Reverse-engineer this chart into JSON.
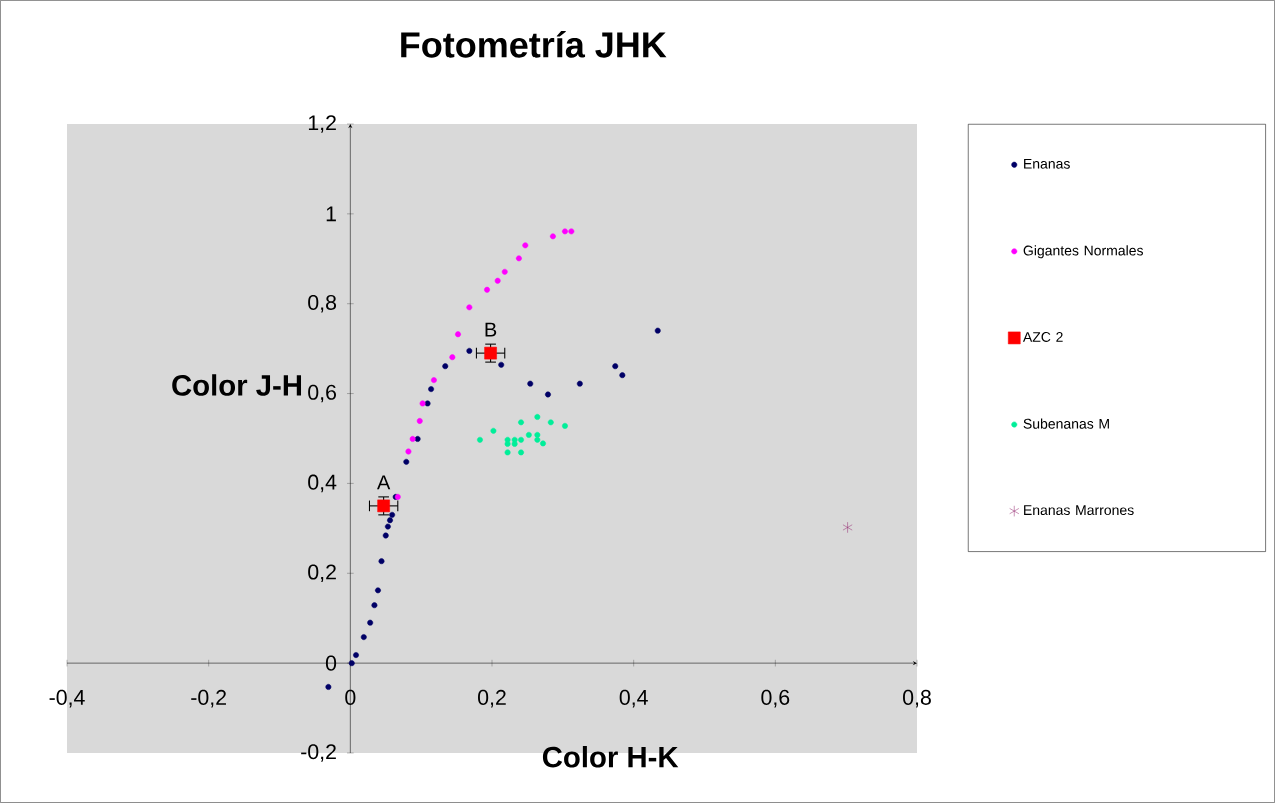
{
  "chart_data": {
    "type": "scatter",
    "title": "Fotometría JHK",
    "xlabel": "Color H-K",
    "ylabel": "Color J-H",
    "xlim": [
      -0.4,
      0.8
    ],
    "ylim": [
      -0.2,
      1.2
    ],
    "xticks": [
      {
        "value": -0.4,
        "label": "-0,4"
      },
      {
        "value": -0.2,
        "label": "-0,2"
      },
      0,
      {
        "value": 0.2,
        "label": "0,2"
      },
      {
        "value": 0.4,
        "label": "0,4"
      },
      {
        "value": 0.6,
        "label": "0,6"
      },
      {
        "value": 0.8,
        "label": "0,8"
      }
    ],
    "yticks": [
      {
        "value": -0.2,
        "label": "-0,2"
      },
      0,
      {
        "value": 0.2,
        "label": "0,2"
      },
      {
        "value": 0.4,
        "label": "0,4"
      },
      {
        "value": 0.6,
        "label": "0,6"
      },
      {
        "value": 0.8,
        "label": "0,8"
      },
      1,
      {
        "value": 1.2,
        "label": "1,2"
      }
    ],
    "legend": "right",
    "series": [
      {
        "name": "Enanas",
        "color": "#000066",
        "marker": "circle",
        "x": [
          -0.031,
          0.002,
          0.008,
          0.019,
          0.028,
          0.034,
          0.039,
          0.044,
          0.05,
          0.053,
          0.056,
          0.059,
          0.064,
          0.079,
          0.095,
          0.109,
          0.114,
          0.134,
          0.168,
          0.213,
          0.254,
          0.279,
          0.324,
          0.374,
          0.384,
          0.434
        ],
        "values": [
          -0.053,
          0.0,
          0.018,
          0.058,
          0.09,
          0.129,
          0.162,
          0.227,
          0.284,
          0.304,
          0.318,
          0.33,
          0.37,
          0.448,
          0.499,
          0.578,
          0.61,
          0.661,
          0.695,
          0.664,
          0.622,
          0.598,
          0.622,
          0.661,
          0.641,
          0.74
        ]
      },
      {
        "name": "Gigantes Normales",
        "color": "#ff00ff",
        "marker": "circle",
        "x": [
          0.067,
          0.082,
          0.088,
          0.098,
          0.102,
          0.118,
          0.144,
          0.152,
          0.168,
          0.193,
          0.208,
          0.218,
          0.238,
          0.247,
          0.286,
          0.303,
          0.312
        ],
        "values": [
          0.37,
          0.471,
          0.499,
          0.539,
          0.578,
          0.63,
          0.681,
          0.732,
          0.792,
          0.831,
          0.851,
          0.871,
          0.901,
          0.93,
          0.95,
          0.961,
          0.961
        ]
      },
      {
        "name": "AZC 2",
        "color": "#ff0000",
        "marker": "square",
        "x": [
          0.047,
          0.198
        ],
        "values": [
          0.35,
          0.69
        ],
        "errors": [
          0.02,
          0.02
        ],
        "xerrors": [
          0.02,
          0.02
        ]
      },
      {
        "name": "Subenanas M",
        "color": "#00ee99",
        "marker": "circle",
        "x": [
          0.183,
          0.202,
          0.222,
          0.222,
          0.222,
          0.232,
          0.232,
          0.241,
          0.241,
          0.241,
          0.252,
          0.264,
          0.264,
          0.264,
          0.272,
          0.283,
          0.303
        ],
        "values": [
          0.497,
          0.517,
          0.497,
          0.488,
          0.469,
          0.497,
          0.488,
          0.497,
          0.536,
          0.469,
          0.508,
          0.548,
          0.508,
          0.497,
          0.489,
          0.536,
          0.528
        ]
      },
      {
        "name": "Enanas Marrones",
        "color": "#993377",
        "marker": "cross",
        "x": [
          0.702
        ],
        "values": [
          0.302
        ]
      }
    ],
    "annotations": [
      {
        "text": "A",
        "x": 0.047,
        "y": 0.35
      },
      {
        "text": "B",
        "x": 0.198,
        "y": 0.69
      }
    ]
  }
}
